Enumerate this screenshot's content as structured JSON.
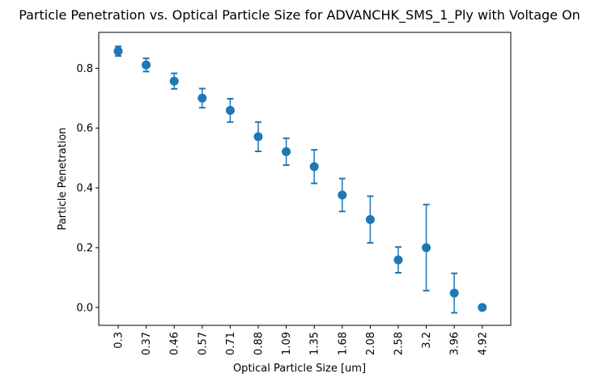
{
  "chart_data": {
    "type": "scatter",
    "title": "Particle Penetration vs. Optical Particle Size for ADVANCHK_SMS_1_Ply with Voltage On",
    "xlabel": "Optical Particle Size [um]",
    "ylabel": "Particle Penetration",
    "categories": [
      "0.3",
      "0.37",
      "0.46",
      "0.57",
      "0.71",
      "0.88",
      "1.09",
      "1.35",
      "1.68",
      "2.08",
      "2.58",
      "3.2",
      "3.96",
      "4.92"
    ],
    "values": [
      0.857,
      0.811,
      0.757,
      0.7,
      0.659,
      0.571,
      0.521,
      0.471,
      0.376,
      0.294,
      0.159,
      0.2,
      0.048,
      0.0
    ],
    "error_low": [
      0.841,
      0.789,
      0.731,
      0.668,
      0.62,
      0.522,
      0.476,
      0.415,
      0.321,
      0.216,
      0.116,
      0.056,
      -0.018,
      0.0
    ],
    "error_high": [
      0.873,
      0.833,
      0.783,
      0.732,
      0.698,
      0.62,
      0.566,
      0.527,
      0.431,
      0.372,
      0.202,
      0.344,
      0.114,
      0.0
    ],
    "ylim": [
      -0.06,
      0.92
    ],
    "yticks": [
      "0.0",
      "0.2",
      "0.4",
      "0.6",
      "0.8"
    ],
    "ytick_values": [
      0.0,
      0.2,
      0.4,
      0.6,
      0.8
    ],
    "grid": false,
    "legend": "none",
    "marker_color": "#1f77b4"
  }
}
